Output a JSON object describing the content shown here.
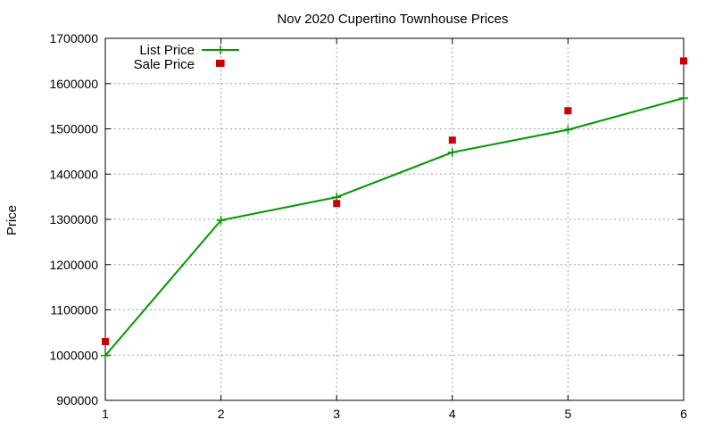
{
  "chart_data": {
    "type": "line",
    "title": "Nov 2020 Cupertino Townhouse Prices",
    "xlabel": "",
    "ylabel": "Price",
    "x": [
      1,
      2,
      3,
      4,
      5,
      6
    ],
    "xlim": [
      1,
      6
    ],
    "ylim": [
      900000,
      1700000
    ],
    "xticks": [
      1,
      2,
      3,
      4,
      5,
      6
    ],
    "yticks": [
      900000,
      1000000,
      1100000,
      1200000,
      1300000,
      1400000,
      1500000,
      1600000,
      1700000
    ],
    "grid": true,
    "legend_position": "top-left",
    "series": [
      {
        "name": "List Price",
        "style": "line with plus markers",
        "color": "#009900",
        "values": [
          999000,
          1298000,
          1349000,
          1448000,
          1498000,
          1568000
        ]
      },
      {
        "name": "Sale Price",
        "style": "square markers",
        "color": "#cc0000",
        "values": [
          1030000,
          1645000,
          1335000,
          1475000,
          1540000,
          1650000
        ]
      }
    ]
  }
}
